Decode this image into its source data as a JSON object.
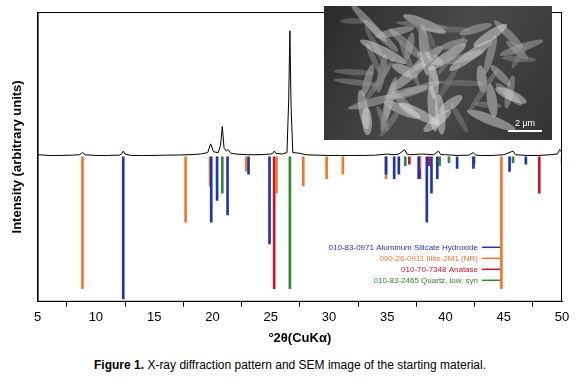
{
  "chart_data": {
    "type": "bar",
    "x_label": "°2θ(CuKα)",
    "y_label": "Intensity (arbitrary units)",
    "caption_label": "Figure 1.",
    "caption": "X-ray diffraction pattern and SEM image of the starting material.",
    "xlim": [
      5,
      50
    ],
    "xticks": [
      5,
      10,
      15,
      20,
      25,
      30,
      35,
      40,
      45,
      50
    ],
    "ylim": [
      -100,
      100
    ],
    "tick_labels": "x",
    "grid": false,
    "legend": "lower right",
    "inset": {
      "scale_bar": "2 μm"
    },
    "series": [
      {
        "type": "line",
        "color": "#000000",
        "x": [
          5,
          6,
          7,
          8,
          8.6,
          8.85,
          9.1,
          10,
          11,
          12,
          12.2,
          12.35,
          12.5,
          13,
          14,
          15,
          16,
          17,
          18,
          19,
          19.6,
          19.85,
          20.1,
          20.5,
          20.7,
          20.85,
          21,
          21.2,
          21.35,
          21.6,
          22,
          23,
          24,
          25,
          25.2,
          25.3,
          25.45,
          26,
          26.4,
          26.55,
          26.65,
          26.75,
          26.9,
          27.5,
          28,
          29,
          30,
          31,
          32,
          33,
          34,
          35,
          35.5,
          36,
          36.5,
          36.7,
          37,
          38,
          39,
          39.4,
          39.6,
          40,
          41,
          42,
          42.4,
          42.6,
          43,
          44,
          45,
          45.8,
          46,
          47,
          48,
          49,
          49.6,
          49.8,
          50
        ],
        "values": [
          1.5,
          1,
          1,
          1.2,
          1.5,
          3,
          1.5,
          1,
          1,
          1.2,
          2,
          4,
          2,
          1,
          1,
          1,
          1.2,
          1.3,
          1.5,
          2,
          3,
          9,
          3.5,
          3,
          8,
          21,
          6,
          4,
          5,
          2.5,
          2,
          1.5,
          1.5,
          2,
          2.5,
          4,
          2.5,
          2,
          3,
          40,
          87,
          35,
          3,
          2.5,
          1.5,
          1.2,
          1,
          1,
          1,
          1,
          1.2,
          2,
          1.5,
          2,
          5,
          2,
          1.5,
          2,
          1.5,
          4,
          1.5,
          1.5,
          1,
          1.2,
          3,
          1.2,
          1,
          1,
          1.5,
          4,
          1.5,
          1,
          1,
          1.5,
          2,
          5,
          3
        ]
      },
      {
        "name": "010-83-0971 Aluminum Silicate Hydroxide",
        "type": "bar",
        "color": "#1f35b0",
        "x": [
          12.35,
          19.9,
          20.4,
          21.3,
          23.1,
          24.9,
          34.9,
          35.6,
          36.0,
          37.7,
          38.4,
          38.8,
          39.3,
          41.0,
          42.4,
          45.5,
          46.9
        ],
        "values": [
          -98,
          -45,
          -30,
          -40,
          -12,
          -60,
          -12,
          -15,
          -12,
          -15,
          -45,
          -25,
          -15,
          -8,
          -8,
          -10,
          -5
        ]
      },
      {
        "name": "000-26-0911 Illite-2M1 (NR)",
        "type": "bar",
        "color": "#f07828",
        "x": [
          8.85,
          17.7,
          19.8,
          22.9,
          25.5,
          27.8,
          29.8,
          31.2,
          34.9,
          37.8,
          44.8,
          50.0
        ],
        "values": [
          -91,
          -45,
          -20,
          -10,
          -25,
          -20,
          -15,
          -12,
          -15,
          -8,
          -91,
          -5
        ]
      },
      {
        "name": "010-70-7348 Anatase",
        "type": "bar",
        "color": "#d0102a",
        "x": [
          25.3,
          36.9,
          37.8,
          38.6,
          48.05
        ],
        "values": [
          -91,
          -5,
          -15,
          -6,
          -25
        ]
      },
      {
        "name": "010-83-2465 Quartz, low, syn",
        "type": "bar",
        "color": "#2e8b2e",
        "x": [
          20.85,
          26.65,
          36.55,
          39.5,
          40.3,
          42.45,
          45.8
        ],
        "values": [
          -25,
          -91,
          -6,
          -6,
          -4,
          -5,
          -4
        ]
      }
    ]
  }
}
